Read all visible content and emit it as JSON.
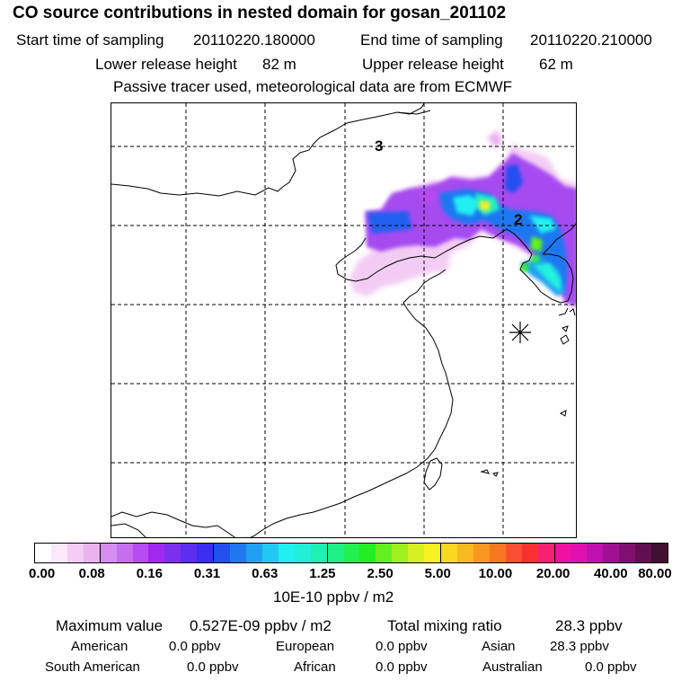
{
  "header": {
    "title": "CO  source contributions in nested domain for gosan_201102",
    "start_label": "Start time of sampling",
    "start_value": "20110220.180000",
    "end_label": "End time of sampling",
    "end_value": "20110220.210000",
    "lower_label": "Lower release height",
    "lower_value": "82 m",
    "upper_label": "Upper release height",
    "upper_value": "62 m",
    "note": "Passive tracer used, meteorological data are from ECMWF"
  },
  "map": {
    "region_labels": [
      "3",
      "2"
    ],
    "receptor": "gosan receptor star"
  },
  "colorbar": {
    "ticks": [
      "0.00",
      "0.08",
      "0.16",
      "0.31",
      "0.63",
      "1.25",
      "2.50",
      "5.00",
      "10.00",
      "20.00",
      "40.00",
      "80.00"
    ],
    "unit": "10E-10 ppbv / m2",
    "colors": [
      "#ffffff",
      "#fbe8fb",
      "#f4ccf4",
      "#eab3ef",
      "#d58ef0",
      "#c66ef0",
      "#b64cf1",
      "#a228f0",
      "#7d2ff0",
      "#5b2ef0",
      "#3a2ef2",
      "#2050f0",
      "#1f78f0",
      "#20a0f0",
      "#20c8f2",
      "#20f0f0",
      "#20f0d8",
      "#20f0b4",
      "#20f088",
      "#20f050",
      "#22ee22",
      "#64f020",
      "#a0f020",
      "#d8f020",
      "#f8f020",
      "#f8d820",
      "#f8b820",
      "#f89820",
      "#f87820",
      "#f85030",
      "#f83030",
      "#f82070",
      "#f010a0",
      "#e010b0",
      "#c010b0",
      "#a01090",
      "#801070",
      "#601050",
      "#401030"
    ]
  },
  "summary": {
    "max_label": "Maximum value",
    "max_value": "0.527E-09 ppbv / m2",
    "total_label": "Total mixing ratio",
    "total_value": "28.3 ppbv",
    "regions": [
      {
        "name": "American",
        "value": "0.0 ppbv"
      },
      {
        "name": "European",
        "value": "0.0 ppbv"
      },
      {
        "name": "Asian",
        "value": "28.3 ppbv"
      },
      {
        "name": "South American",
        "value": "0.0 ppbv"
      },
      {
        "name": "African",
        "value": "0.0 ppbv"
      },
      {
        "name": "Australian",
        "value": "0.0 ppbv"
      }
    ]
  }
}
